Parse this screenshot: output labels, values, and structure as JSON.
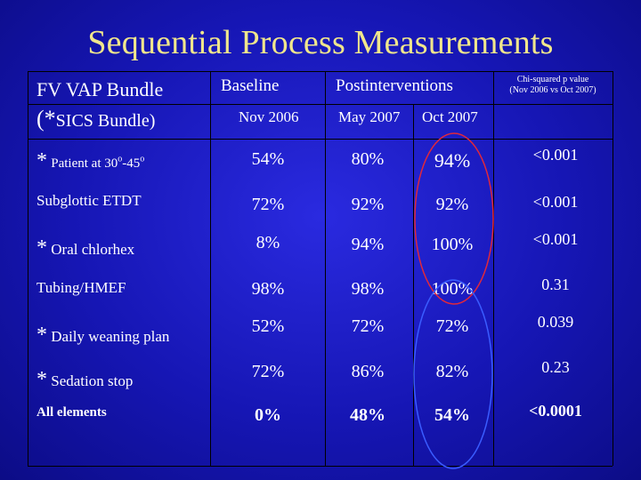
{
  "title": "Sequential Process Measurements",
  "header": {
    "bundle_line1": "FV VAP Bundle",
    "bundle_line2_prefix": "(*",
    "bundle_line2_text": "SICS Bundle)",
    "baseline": "Baseline",
    "postinterventions": "Postinterventions",
    "pvalue_line1": "Chi-squared p value",
    "pvalue_line2": "(Nov 2006 vs Oct 2007)",
    "col_nov2006": "Nov 2006",
    "col_may2007": "May 2007",
    "col_oct2007": "Oct 2007"
  },
  "rows": [
    {
      "star": "*",
      "label": "Patient at 30",
      "label_sup1": "o",
      "label_mid": "-45",
      "label_sup2": "o",
      "nov": "54%",
      "may": "80%",
      "oct": "94%",
      "p": "<0.001"
    },
    {
      "star": "",
      "label": "Subglottic ETDT",
      "nov": "72%",
      "may": "92%",
      "oct": "92%",
      "p": "<0.001"
    },
    {
      "star": "*",
      "label": "Oral chlorhex",
      "nov": "8%",
      "may": "94%",
      "oct": "100%",
      "p": "<0.001"
    },
    {
      "star": "",
      "label": "Tubing/HMEF",
      "nov": "98%",
      "may": "98%",
      "oct": "100%",
      "p": "0.31"
    },
    {
      "star": "*",
      "label": "Daily weaning plan",
      "nov": "52%",
      "may": "72%",
      "oct": "72%",
      "p": "0.039"
    },
    {
      "star": "*",
      "label": "Sedation stop",
      "nov": "72%",
      "may": "86%",
      "oct": "82%",
      "p": "0.23"
    },
    {
      "star": "",
      "label": "All elements",
      "nov": "0%",
      "may": "48%",
      "oct": "54%",
      "p": "<0.0001"
    }
  ],
  "colors": {
    "title": "#f0e68c",
    "red_oval": "#e0283c",
    "blue_oval": "#3a5cff"
  }
}
